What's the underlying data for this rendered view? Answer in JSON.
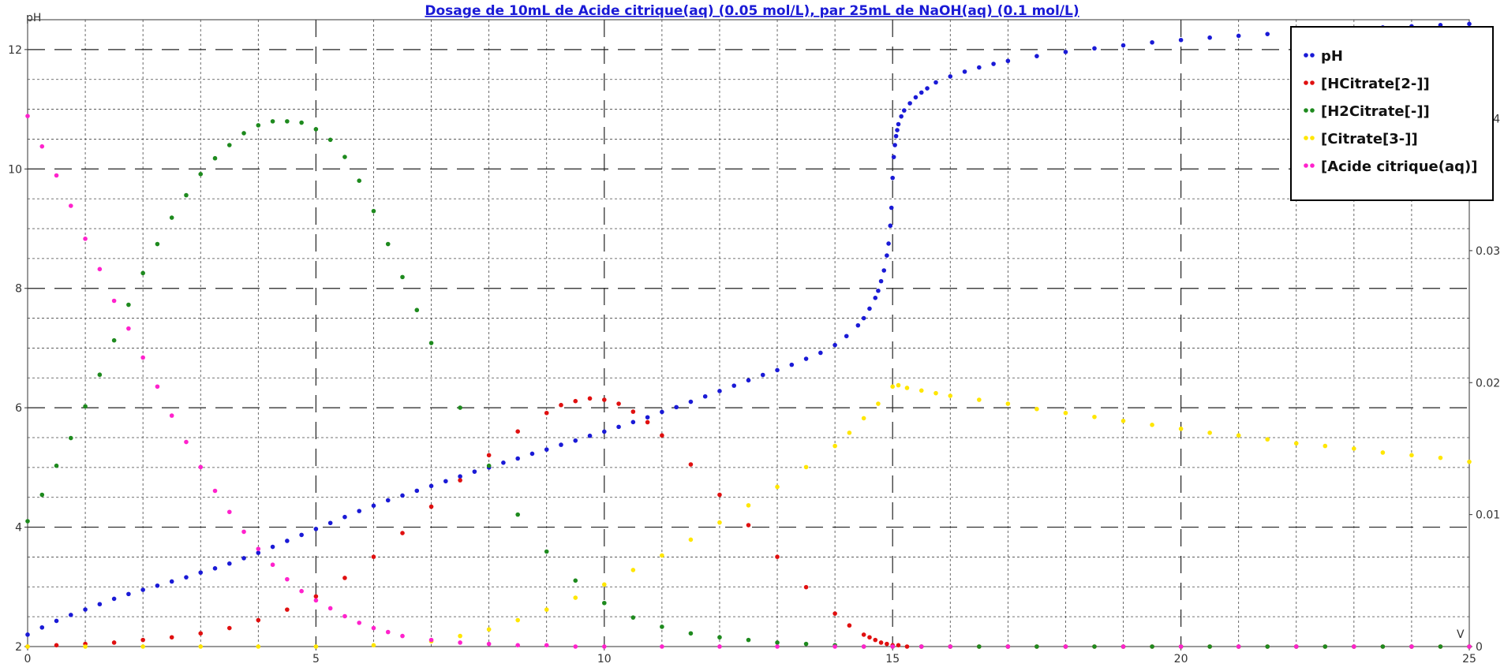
{
  "chart_data": {
    "type": "scatter",
    "title": "Dosage de 10mL de Acide citrique(aq) (0.05 mol/L),  par 25mL  de NaOH(aq) (0.1 mol/L)",
    "xlabel": "V",
    "ylabel": "pH",
    "xlim": [
      0,
      25
    ],
    "ylim": [
      2,
      12.5
    ],
    "y2lim": [
      0,
      0.0475
    ],
    "x_ticks": [
      "0",
      "5",
      "10",
      "15",
      "20",
      "25"
    ],
    "y_ticks": [
      "2",
      "4",
      "6",
      "8",
      "10",
      "12"
    ],
    "y2_ticks": [
      "0",
      "0.01",
      "0.02",
      "0.03",
      "0.04"
    ],
    "grid": true,
    "legend_position": "top-right",
    "series": [
      {
        "name": "pH",
        "axis": "left",
        "color": "#1a1ad6",
        "x": [
          0,
          0.25,
          0.5,
          0.75,
          1,
          1.25,
          1.5,
          1.75,
          2,
          2.25,
          2.5,
          2.75,
          3,
          3.25,
          3.5,
          3.75,
          4,
          4.25,
          4.5,
          4.75,
          5,
          5.25,
          5.5,
          5.75,
          6,
          6.25,
          6.5,
          6.75,
          7,
          7.25,
          7.5,
          7.75,
          8,
          8.25,
          8.5,
          8.75,
          9,
          9.25,
          9.5,
          9.75,
          10,
          10.25,
          10.5,
          10.75,
          11,
          11.25,
          11.5,
          11.75,
          12,
          12.25,
          12.5,
          12.75,
          13,
          13.25,
          13.5,
          13.75,
          14,
          14.2,
          14.4,
          14.5,
          14.6,
          14.7,
          14.75,
          14.8,
          14.85,
          14.9,
          14.93,
          14.96,
          14.98,
          15,
          15.02,
          15.04,
          15.06,
          15.08,
          15.1,
          15.15,
          15.2,
          15.3,
          15.4,
          15.5,
          15.6,
          15.75,
          16,
          16.25,
          16.5,
          16.75,
          17,
          17.5,
          18,
          18.5,
          19,
          19.5,
          20,
          20.5,
          21,
          21.5,
          22,
          22.5,
          23,
          23.5,
          24,
          24.5,
          25
        ],
        "y": [
          2.2,
          2.32,
          2.43,
          2.53,
          2.62,
          2.71,
          2.8,
          2.88,
          2.95,
          3.02,
          3.09,
          3.16,
          3.24,
          3.31,
          3.39,
          3.48,
          3.57,
          3.67,
          3.77,
          3.87,
          3.97,
          4.07,
          4.17,
          4.27,
          4.36,
          4.45,
          4.53,
          4.61,
          4.69,
          4.77,
          4.85,
          4.93,
          5.0,
          5.08,
          5.15,
          5.23,
          5.3,
          5.38,
          5.45,
          5.53,
          5.6,
          5.68,
          5.76,
          5.84,
          5.93,
          6.01,
          6.1,
          6.19,
          6.28,
          6.37,
          6.46,
          6.55,
          6.63,
          6.72,
          6.82,
          6.92,
          7.05,
          7.2,
          7.38,
          7.5,
          7.66,
          7.84,
          7.96,
          8.12,
          8.3,
          8.55,
          8.75,
          9.05,
          9.35,
          9.85,
          10.2,
          10.4,
          10.55,
          10.65,
          10.75,
          10.88,
          10.98,
          11.1,
          11.2,
          11.28,
          11.35,
          11.45,
          11.55,
          11.63,
          11.7,
          11.76,
          11.81,
          11.89,
          11.96,
          12.02,
          12.07,
          12.12,
          12.16,
          12.2,
          12.23,
          12.26,
          12.29,
          12.32,
          12.34,
          12.37,
          12.39,
          12.41,
          12.43
        ]
      },
      {
        "name": "[HCitrate[2-]]",
        "axis": "right",
        "color": "#e01010",
        "x": [
          0,
          0.5,
          1,
          1.5,
          2,
          2.5,
          3,
          3.5,
          4,
          4.5,
          5,
          5.5,
          6,
          6.5,
          7,
          7.5,
          8,
          8.5,
          9,
          9.25,
          9.5,
          9.75,
          10,
          10.25,
          10.5,
          10.75,
          11,
          11.5,
          12,
          12.5,
          13,
          13.5,
          14,
          14.25,
          14.5,
          14.6,
          14.7,
          14.8,
          14.9,
          15,
          15.1,
          15.25,
          15.5,
          16,
          16.5,
          17,
          17.5,
          18,
          18.5,
          19,
          19.5,
          20,
          20.5,
          21,
          21.5,
          22,
          22.5,
          23,
          23.5,
          24,
          24.5,
          25
        ],
        "y": [
          0,
          0.0001,
          0.0002,
          0.0003,
          0.0005,
          0.0007,
          0.001,
          0.0014,
          0.002,
          0.0028,
          0.0038,
          0.0052,
          0.0068,
          0.0086,
          0.0106,
          0.0126,
          0.0145,
          0.0163,
          0.0177,
          0.0183,
          0.0186,
          0.0188,
          0.0187,
          0.0184,
          0.0178,
          0.017,
          0.016,
          0.0138,
          0.0115,
          0.0092,
          0.0068,
          0.0045,
          0.0025,
          0.0016,
          0.0009,
          0.0007,
          0.0005,
          0.0003,
          0.0002,
          0.0001,
          0.0001,
          0,
          0,
          0,
          0,
          0,
          0,
          0,
          0,
          0,
          0,
          0,
          0,
          0,
          0,
          0,
          0,
          0,
          0,
          0,
          0,
          0
        ]
      },
      {
        "name": "[H2Citrate[-]]",
        "axis": "right",
        "color": "#1e8a1e",
        "x": [
          0,
          0.25,
          0.5,
          0.75,
          1,
          1.25,
          1.5,
          1.75,
          2,
          2.25,
          2.5,
          2.75,
          3,
          3.25,
          3.5,
          3.75,
          4,
          4.25,
          4.5,
          4.75,
          5,
          5.25,
          5.5,
          5.75,
          6,
          6.25,
          6.5,
          6.75,
          7,
          7.5,
          8,
          8.5,
          9,
          9.5,
          10,
          10.5,
          11,
          11.5,
          12,
          12.5,
          13,
          13.5,
          14,
          14.5,
          15,
          15.5,
          16,
          16.5,
          17,
          17.5,
          18,
          18.5,
          19,
          19.5,
          20,
          20.5,
          21,
          21.5,
          22,
          22.5,
          23,
          23.5,
          24,
          24.5,
          25
        ],
        "y": [
          0.0095,
          0.0115,
          0.0137,
          0.0158,
          0.0182,
          0.0206,
          0.0232,
          0.0259,
          0.0283,
          0.0305,
          0.0325,
          0.0342,
          0.0358,
          0.037,
          0.038,
          0.0389,
          0.0395,
          0.0398,
          0.0398,
          0.0397,
          0.0392,
          0.0384,
          0.0371,
          0.0353,
          0.033,
          0.0305,
          0.028,
          0.0255,
          0.023,
          0.0181,
          0.0137,
          0.01,
          0.0072,
          0.005,
          0.0033,
          0.0022,
          0.0015,
          0.001,
          0.0007,
          0.0005,
          0.0003,
          0.0002,
          0.0001,
          0,
          0,
          0,
          0,
          0,
          0,
          0,
          0,
          0,
          0,
          0,
          0,
          0,
          0,
          0,
          0,
          0,
          0,
          0,
          0,
          0,
          0
        ]
      },
      {
        "name": "[Citrate[3-]]",
        "axis": "right",
        "color": "#ffe600",
        "x": [
          0,
          1,
          2,
          3,
          4,
          5,
          6,
          7,
          7.5,
          8,
          8.5,
          9,
          9.5,
          10,
          10.5,
          11,
          11.5,
          12,
          12.5,
          13,
          13.5,
          14,
          14.25,
          14.5,
          14.75,
          15,
          15.1,
          15.25,
          15.5,
          15.75,
          16,
          16.5,
          17,
          17.5,
          18,
          18.5,
          19,
          19.5,
          20,
          20.5,
          21,
          21.5,
          22,
          22.5,
          23,
          23.5,
          24,
          24.5,
          25
        ],
        "y": [
          0,
          0,
          0,
          0,
          0,
          0,
          0.0001,
          0.0004,
          0.0008,
          0.0013,
          0.002,
          0.0028,
          0.0037,
          0.0047,
          0.0058,
          0.0069,
          0.0081,
          0.0094,
          0.0107,
          0.0121,
          0.0136,
          0.0152,
          0.0162,
          0.0173,
          0.0184,
          0.0197,
          0.0198,
          0.0196,
          0.0194,
          0.0192,
          0.019,
          0.0187,
          0.0184,
          0.018,
          0.0177,
          0.0174,
          0.0171,
          0.0168,
          0.0165,
          0.0162,
          0.016,
          0.0157,
          0.0154,
          0.0152,
          0.015,
          0.0147,
          0.0145,
          0.0143,
          0.014
        ]
      },
      {
        "name": "[Acide citrique(aq)]",
        "axis": "right",
        "color": "#ff22cc",
        "x": [
          0,
          0.25,
          0.5,
          0.75,
          1,
          1.25,
          1.5,
          1.75,
          2,
          2.25,
          2.5,
          2.75,
          3,
          3.25,
          3.5,
          3.75,
          4,
          4.25,
          4.5,
          4.75,
          5,
          5.25,
          5.5,
          5.75,
          6,
          6.25,
          6.5,
          7,
          7.5,
          8,
          8.5,
          9,
          9.5,
          10,
          11,
          12,
          13,
          14,
          14.5,
          15,
          15.5,
          16,
          17,
          18,
          19,
          20,
          21,
          22,
          23,
          24,
          25
        ],
        "y": [
          0.0402,
          0.0379,
          0.0357,
          0.0334,
          0.0309,
          0.0286,
          0.0262,
          0.0241,
          0.0219,
          0.0197,
          0.0175,
          0.0155,
          0.0136,
          0.0118,
          0.0102,
          0.0087,
          0.0074,
          0.0062,
          0.0051,
          0.0042,
          0.0035,
          0.0029,
          0.0023,
          0.0018,
          0.0014,
          0.0011,
          0.0008,
          0.0005,
          0.0003,
          0.0002,
          0.0001,
          0.0001,
          0,
          0,
          0,
          0,
          0,
          0,
          0,
          0,
          0,
          0,
          0,
          0,
          0,
          0,
          0,
          0,
          0,
          0,
          0
        ]
      }
    ]
  }
}
